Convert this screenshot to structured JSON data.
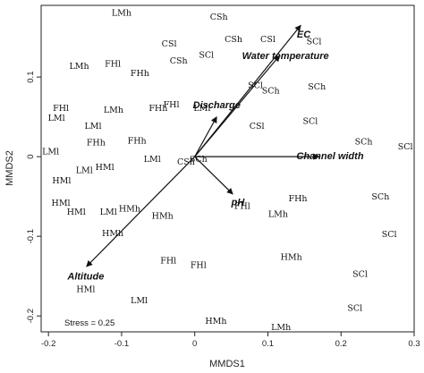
{
  "chart_data": {
    "type": "scatter",
    "xlabel": "MMDS1",
    "ylabel": "MMDS2",
    "xlim": [
      -0.21,
      0.3
    ],
    "ylim": [
      -0.22,
      0.19
    ],
    "xticks": [
      -0.2,
      -0.1,
      0,
      0.1,
      0.2,
      0.3
    ],
    "xtick_labels": [
      "-0.2",
      "-0.1",
      "0",
      "0.1",
      "0.2",
      "0.3"
    ],
    "yticks": [
      -0.2,
      -0.1,
      0,
      0.1
    ],
    "ytick_labels": [
      "-0.2",
      "-0.1",
      "0",
      "0.1"
    ],
    "grid": false,
    "annotation": "Stress = 0.25",
    "points": [
      {
        "label": "LMh",
        "x": -0.1,
        "y": 0.18
      },
      {
        "label": "CSh",
        "x": 0.033,
        "y": 0.175
      },
      {
        "label": "CSh",
        "x": 0.053,
        "y": 0.147
      },
      {
        "label": "CSl",
        "x": 0.1,
        "y": 0.147
      },
      {
        "label": "SCl",
        "x": 0.163,
        "y": 0.144
      },
      {
        "label": "CSl",
        "x": -0.035,
        "y": 0.141
      },
      {
        "label": "SCl",
        "x": 0.016,
        "y": 0.127
      },
      {
        "label": "CSh",
        "x": -0.022,
        "y": 0.12
      },
      {
        "label": "LMh",
        "x": -0.158,
        "y": 0.113
      },
      {
        "label": "FHl",
        "x": -0.112,
        "y": 0.116
      },
      {
        "label": "FHh",
        "x": -0.075,
        "y": 0.104
      },
      {
        "label": "SCl",
        "x": 0.083,
        "y": 0.089
      },
      {
        "label": "SCh",
        "x": 0.104,
        "y": 0.082
      },
      {
        "label": "SCh",
        "x": 0.167,
        "y": 0.087
      },
      {
        "label": "FHl",
        "x": -0.183,
        "y": 0.06
      },
      {
        "label": "LMh",
        "x": -0.111,
        "y": 0.058
      },
      {
        "label": "FHh",
        "x": -0.05,
        "y": 0.06
      },
      {
        "label": "FHl",
        "x": -0.032,
        "y": 0.065
      },
      {
        "label": "LMl",
        "x": 0.01,
        "y": 0.06
      },
      {
        "label": "LMl",
        "x": -0.189,
        "y": 0.048
      },
      {
        "label": "LMl",
        "x": -0.139,
        "y": 0.038
      },
      {
        "label": "CSl",
        "x": 0.085,
        "y": 0.038
      },
      {
        "label": "SCl",
        "x": 0.158,
        "y": 0.044
      },
      {
        "label": "FHh",
        "x": -0.135,
        "y": 0.017
      },
      {
        "label": "FHh",
        "x": -0.079,
        "y": 0.019
      },
      {
        "label": "SCh",
        "x": 0.231,
        "y": 0.018
      },
      {
        "label": "SCl",
        "x": 0.288,
        "y": 0.012
      },
      {
        "label": "LMl",
        "x": -0.197,
        "y": 0.006
      },
      {
        "label": "LMl",
        "x": -0.058,
        "y": -0.004
      },
      {
        "label": "CSh",
        "x": -0.012,
        "y": -0.007
      },
      {
        "label": "SCh",
        "x": 0.005,
        "y": -0.004
      },
      {
        "label": "HMl",
        "x": -0.123,
        "y": -0.014
      },
      {
        "label": "LMl",
        "x": -0.151,
        "y": -0.018
      },
      {
        "label": "HMl",
        "x": -0.182,
        "y": -0.031
      },
      {
        "label": "FHh",
        "x": 0.141,
        "y": -0.053
      },
      {
        "label": "SCh",
        "x": 0.254,
        "y": -0.051
      },
      {
        "label": "FHl",
        "x": 0.065,
        "y": -0.063
      },
      {
        "label": "HMl",
        "x": -0.183,
        "y": -0.059
      },
      {
        "label": "HMl",
        "x": -0.162,
        "y": -0.07
      },
      {
        "label": "LMl",
        "x": -0.118,
        "y": -0.07
      },
      {
        "label": "HMh",
        "x": -0.089,
        "y": -0.066
      },
      {
        "label": "HMh",
        "x": -0.044,
        "y": -0.075
      },
      {
        "label": "LMh",
        "x": 0.114,
        "y": -0.073
      },
      {
        "label": "HMh",
        "x": -0.112,
        "y": -0.097
      },
      {
        "label": "SCl",
        "x": 0.266,
        "y": -0.098
      },
      {
        "label": "HMh",
        "x": 0.132,
        "y": -0.127
      },
      {
        "label": "FHl",
        "x": -0.036,
        "y": -0.131
      },
      {
        "label": "FHl",
        "x": 0.005,
        "y": -0.137
      },
      {
        "label": "HMl",
        "x": -0.149,
        "y": -0.167
      },
      {
        "label": "SCl",
        "x": 0.226,
        "y": -0.148
      },
      {
        "label": "LMl",
        "x": -0.076,
        "y": -0.181
      },
      {
        "label": "SCl",
        "x": 0.219,
        "y": -0.191
      },
      {
        "label": "HMh",
        "x": 0.029,
        "y": -0.207
      },
      {
        "label": "LMh",
        "x": 0.118,
        "y": -0.215
      }
    ],
    "vectors": [
      {
        "label": "EC",
        "x": 0.145,
        "y": 0.165
      },
      {
        "label": "Water temperature",
        "x": 0.116,
        "y": 0.127
      },
      {
        "label": "Discharge",
        "x": 0.03,
        "y": 0.05
      },
      {
        "label": "Channel width",
        "x": 0.17,
        "y": 0.0
      },
      {
        "label": "pH",
        "x": 0.052,
        "y": -0.047
      },
      {
        "label": "Altitude",
        "x": -0.148,
        "y": -0.138
      }
    ],
    "vector_label_positions": [
      {
        "label": "EC",
        "x": 0.149,
        "y": 0.153
      },
      {
        "label": "Water temperature",
        "x": 0.124,
        "y": 0.126
      },
      {
        "label": "Discharge",
        "x": 0.03,
        "y": 0.064
      },
      {
        "label": "Channel width",
        "x": 0.185,
        "y": 0.0
      },
      {
        "label": "pH",
        "x": 0.059,
        "y": -0.058
      },
      {
        "label": "Altitude",
        "x": -0.149,
        "y": -0.151
      }
    ]
  }
}
